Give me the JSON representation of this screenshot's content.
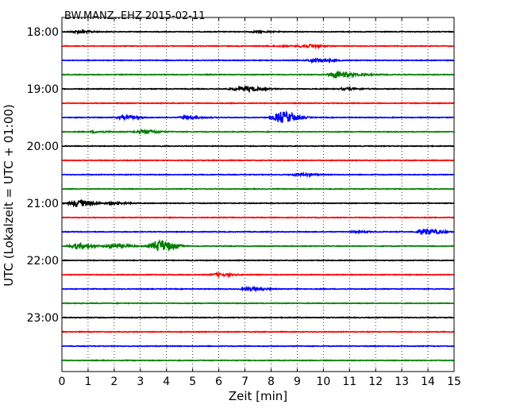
{
  "chart_data": {
    "type": "line",
    "title": "BW.MANZ..EHZ 2015-02-11",
    "xlabel": "Zeit  [min]",
    "ylabel": "UTC (Lokalzeit = UTC + 01:00)",
    "xlim": [
      0,
      15
    ],
    "x_ticks": [
      "0",
      "1",
      "2",
      "3",
      "4",
      "5",
      "6",
      "7",
      "8",
      "9",
      "10",
      "11",
      "12",
      "13",
      "14",
      "15"
    ],
    "y_tick_labels": [
      "18:00",
      "19:00",
      "20:00",
      "21:00",
      "22:00",
      "23:00"
    ],
    "grid": "vertical dotted",
    "colors": [
      "#000000",
      "#ff0000",
      "#0000ff",
      "#007f00"
    ],
    "traces_interval_minutes": 15,
    "series": [
      {
        "start": "18:00",
        "color": "#000000",
        "events": [
          {
            "x": 0.6,
            "amp": 0.18
          },
          {
            "x": 7.4,
            "amp": 0.1
          }
        ]
      },
      {
        "start": "18:15",
        "color": "#ff0000",
        "events": [
          {
            "x": 9.3,
            "amp": 0.25
          },
          {
            "x": 8.2,
            "amp": 0.08
          }
        ]
      },
      {
        "start": "18:30",
        "color": "#0000ff",
        "events": [
          {
            "x": 9.7,
            "amp": 0.3
          }
        ]
      },
      {
        "start": "18:45",
        "color": "#007f00",
        "events": [
          {
            "x": 10.5,
            "amp": 0.55
          },
          {
            "x": 11.5,
            "amp": 0.1
          }
        ]
      },
      {
        "start": "19:00",
        "color": "#000000",
        "events": [
          {
            "x": 7.1,
            "amp": 0.35
          },
          {
            "x": 6.6,
            "amp": 0.15
          },
          {
            "x": 10.9,
            "amp": 0.15
          }
        ]
      },
      {
        "start": "19:15",
        "color": "#ff0000",
        "events": []
      },
      {
        "start": "19:30",
        "color": "#0000ff",
        "events": [
          {
            "x": 8.4,
            "amp": 1.0
          },
          {
            "x": 2.4,
            "amp": 0.25
          },
          {
            "x": 4.8,
            "amp": 0.2
          }
        ]
      },
      {
        "start": "19:45",
        "color": "#007f00",
        "events": [
          {
            "x": 3.1,
            "amp": 0.3
          },
          {
            "x": 1.3,
            "amp": 0.12
          }
        ]
      },
      {
        "start": "20:00",
        "color": "#000000",
        "events": []
      },
      {
        "start": "20:15",
        "color": "#ff0000",
        "events": []
      },
      {
        "start": "20:30",
        "color": "#0000ff",
        "events": [
          {
            "x": 9.1,
            "amp": 0.2
          }
        ]
      },
      {
        "start": "20:45",
        "color": "#007f00",
        "events": []
      },
      {
        "start": "21:00",
        "color": "#000000",
        "events": [
          {
            "x": 0.6,
            "amp": 0.55
          },
          {
            "x": 2.0,
            "amp": 0.15
          }
        ]
      },
      {
        "start": "21:15",
        "color": "#ff0000",
        "events": []
      },
      {
        "start": "21:30",
        "color": "#0000ff",
        "events": [
          {
            "x": 13.9,
            "amp": 0.5
          },
          {
            "x": 11.3,
            "amp": 0.1
          }
        ]
      },
      {
        "start": "21:45",
        "color": "#007f00",
        "events": [
          {
            "x": 3.7,
            "amp": 1.0
          },
          {
            "x": 0.6,
            "amp": 0.45
          },
          {
            "x": 2.0,
            "amp": 0.35
          }
        ]
      },
      {
        "start": "22:00",
        "color": "#000000",
        "events": []
      },
      {
        "start": "22:15",
        "color": "#ff0000",
        "events": [
          {
            "x": 6.0,
            "amp": 0.2
          }
        ]
      },
      {
        "start": "22:30",
        "color": "#0000ff",
        "events": [
          {
            "x": 7.2,
            "amp": 0.25
          }
        ]
      },
      {
        "start": "22:45",
        "color": "#007f00",
        "events": []
      },
      {
        "start": "23:00",
        "color": "#000000",
        "events": []
      },
      {
        "start": "23:15",
        "color": "#ff0000",
        "events": []
      },
      {
        "start": "23:30",
        "color": "#0000ff",
        "events": []
      },
      {
        "start": "23:45",
        "color": "#007f00",
        "events": []
      }
    ]
  }
}
